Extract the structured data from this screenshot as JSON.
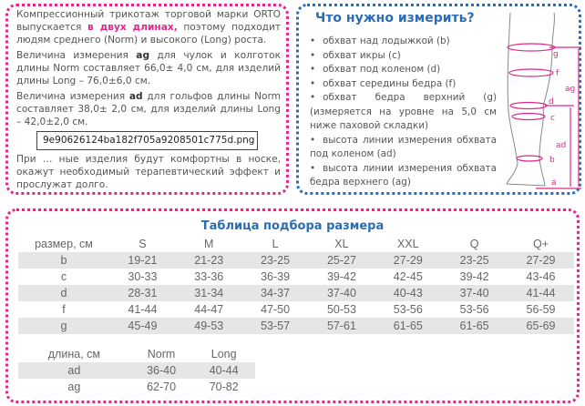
{
  "intro": {
    "p1_a": "Компрессионный трикотаж торговой марки ORTO выпускается ",
    "p1_hl": "в двух длинах,",
    "p1_b": " поэтому подходит людям среднего (Norm) и высокого (Long) роста.",
    "p2_a": "Величина измерения ",
    "p2_bold": "ag",
    "p2_b": " для чулок и колготок длины Norm составляет 66,0± 4,0 см, для изделий длины Long – 76,0±6,0 см.",
    "p3_a": "Величина измерения ",
    "p3_bold": "ad",
    "p3_b": " для гольфов длины Norm составляет 38,0± 2,0 см, для изделий длины Long – 42,0±2,0 см.",
    "p4": "При … ные изделия будут комфортны в носке, окажут необходимый терапевтический эффект и прослужат долго."
  },
  "tooltip": "9e90626124ba182f705a9208501c775d.png",
  "measure": {
    "title": "Что нужно измерить?",
    "items": [
      "обхват над лодыжкой (b)",
      "обхват икры (c)",
      "обхват под коленом (d)",
      "обхват середины бедра (f)",
      "обхват бедра верхний (g) (измеряется на уровне на 5,0 см ниже паховой складки)",
      "высота линии измерения обхвата под коленом (ad)",
      "высота линии измерения обхвата бедра верхнего (ag)"
    ],
    "diagram_labels": [
      "g",
      "f",
      "d",
      "c",
      "b",
      "a",
      "ag",
      "ad"
    ]
  },
  "size_table": {
    "title": "Таблица подбора размера",
    "header": [
      "размер, см",
      "S",
      "M",
      "L",
      "XL",
      "XXL",
      "Q",
      "Q+"
    ],
    "rows": [
      [
        "b",
        "19-21",
        "21-23",
        "23-25",
        "25-27",
        "27-29",
        "23-25",
        "27-29"
      ],
      [
        "c",
        "30-33",
        "33-36",
        "36-39",
        "39-42",
        "42-45",
        "39-42",
        "43-46"
      ],
      [
        "d",
        "28-31",
        "31-34",
        "34-37",
        "37-40",
        "40-43",
        "37-40",
        "41-44"
      ],
      [
        "f",
        "41-44",
        "44-47",
        "47-50",
        "50-53",
        "53-56",
        "53-56",
        "56-59"
      ],
      [
        "g",
        "45-49",
        "49-53",
        "53-57",
        "57-61",
        "61-65",
        "61-65",
        "65-69"
      ]
    ]
  },
  "length_table": {
    "header": [
      "длина, см",
      "Norm",
      "Long"
    ],
    "rows": [
      [
        "ad",
        "36-40",
        "40-44"
      ],
      [
        "ag",
        "62-70",
        "70-82"
      ]
    ]
  },
  "colors": {
    "magenta": "#e0288a",
    "blue": "#2a6db5",
    "row_shade": "#e6e6e6"
  }
}
